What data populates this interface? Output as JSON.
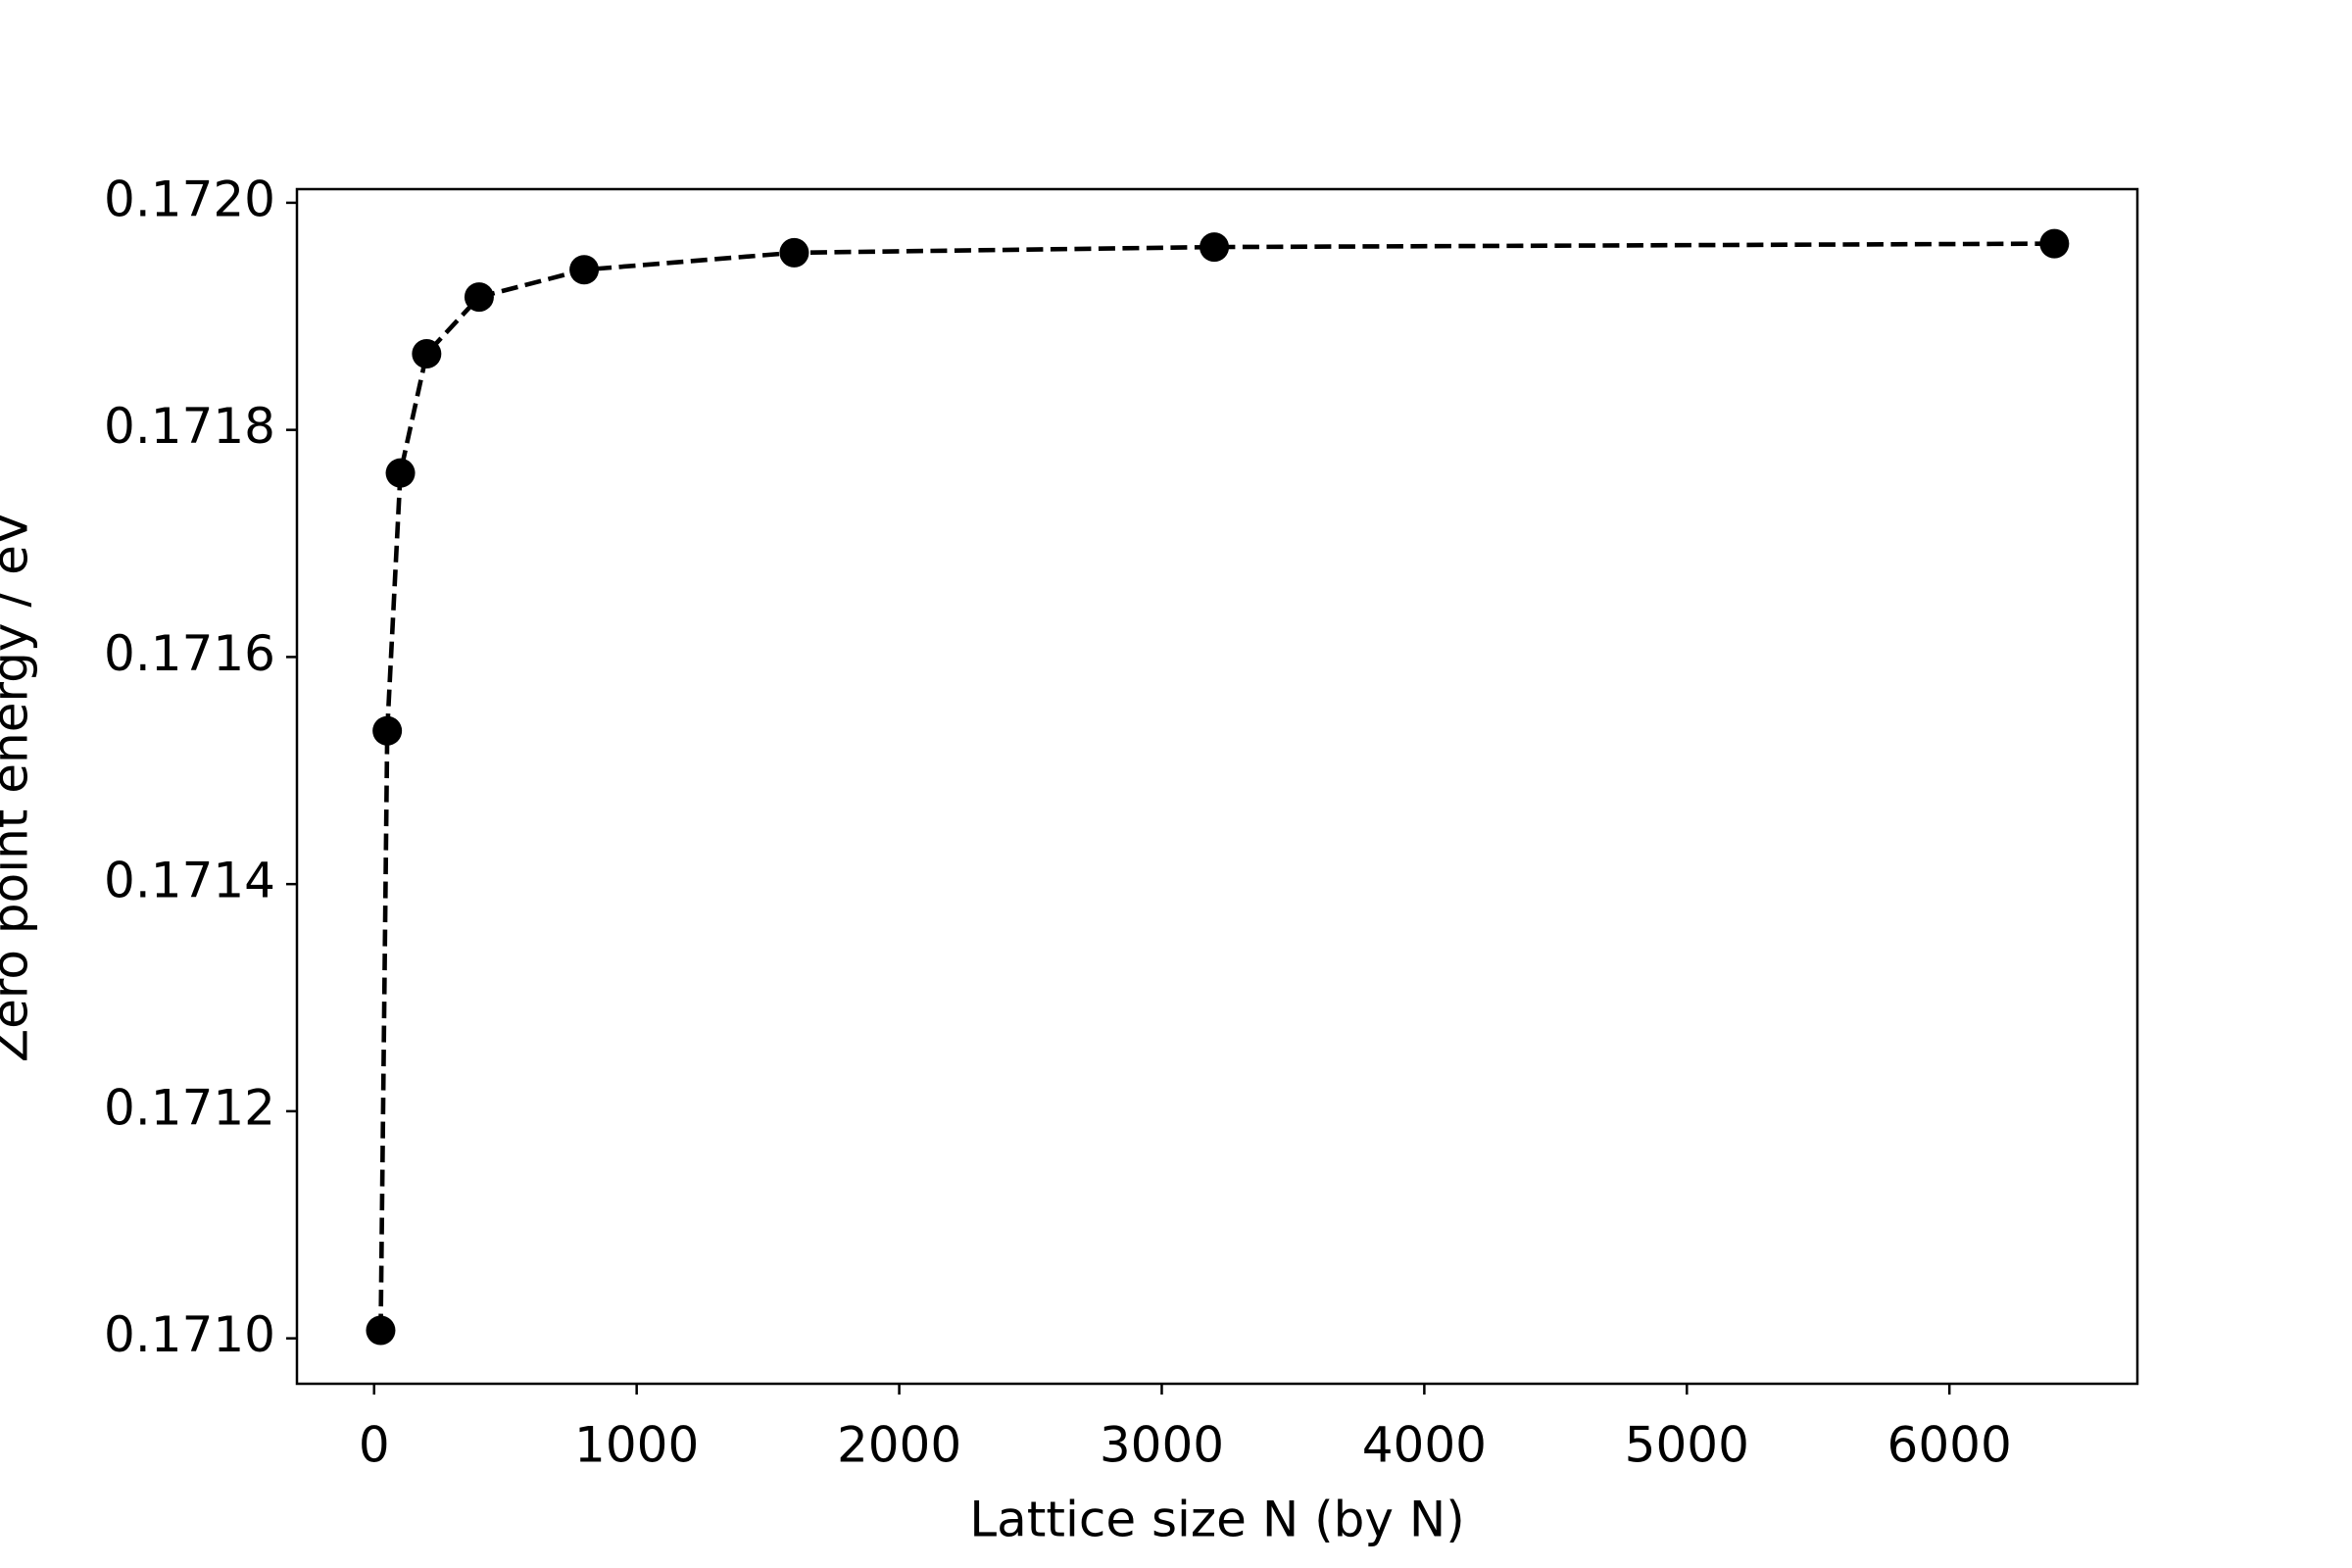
{
  "chart_data": {
    "type": "line",
    "x_label": "Lattice size N (by N)",
    "y_label": "Zero point energy / eV",
    "series": [
      {
        "color": "#000000",
        "x": [
          25,
          50,
          100,
          200,
          400,
          800,
          1600,
          3200,
          6400
        ],
        "values": [
          0.171007,
          0.171535,
          0.171762,
          0.171867,
          0.171917,
          0.171941,
          0.171956,
          0.171961,
          0.171964
        ]
      }
    ],
    "xlim": [
      -294,
      6716
    ],
    "ylim": [
      0.17096,
      0.172012
    ],
    "xticks": [
      0,
      1000,
      2000,
      3000,
      4000,
      5000,
      6000
    ],
    "yticks": [
      {
        "value": 0.171,
        "label": "0.1710"
      },
      {
        "value": 0.1712,
        "label": "0.1712"
      },
      {
        "value": 0.1714,
        "label": "0.1714"
      },
      {
        "value": 0.1716,
        "label": "0.1716"
      },
      {
        "value": 0.1718,
        "label": "0.1718"
      },
      {
        "value": 0.172,
        "label": "0.1720"
      }
    ],
    "line_style": "dashed",
    "grid": false
  }
}
